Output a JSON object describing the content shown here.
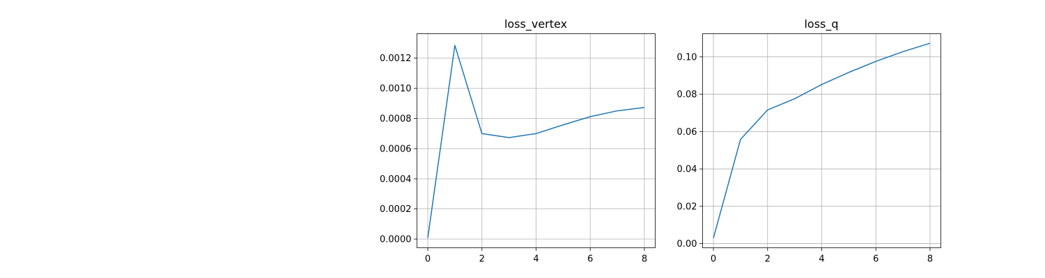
{
  "chart_data": [
    {
      "type": "line",
      "title": "loss_vertex",
      "xlabel": "",
      "ylabel": "",
      "x": [
        0,
        1,
        2,
        3,
        4,
        5,
        6,
        7,
        8
      ],
      "series": [
        {
          "values": [
            8e-06,
            0.001285,
            0.0007,
            0.000673,
            0.0007,
            0.000758,
            0.000812,
            0.000851,
            0.000873
          ]
        }
      ],
      "xlim": [
        -0.4,
        8.4
      ],
      "ylim": [
        -5.75e-05,
        0.0013625
      ],
      "xticks": [
        0,
        2,
        4,
        6,
        8
      ],
      "xtick_labels": [
        "0",
        "2",
        "4",
        "6",
        "8"
      ],
      "yticks": [
        0,
        0.0002,
        0.0004,
        0.0006,
        0.0008,
        0.001,
        0.0012
      ],
      "ytick_labels": [
        "0.0000",
        "0.0002",
        "0.0004",
        "0.0006",
        "0.0008",
        "0.0010",
        "0.0012"
      ],
      "grid": true,
      "color": "#1f77b4"
    },
    {
      "type": "line",
      "title": "loss_q",
      "xlabel": "",
      "ylabel": "",
      "x": [
        0,
        1,
        2,
        3,
        4,
        5,
        6,
        7,
        8
      ],
      "series": [
        {
          "values": [
            0.003,
            0.0558,
            0.0716,
            0.0776,
            0.0852,
            0.0917,
            0.0976,
            0.1028,
            0.1073
          ]
        }
      ],
      "xlim": [
        -0.4,
        8.4
      ],
      "ylim": [
        -0.0022,
        0.1124
      ],
      "xticks": [
        0,
        2,
        4,
        6,
        8
      ],
      "xtick_labels": [
        "0",
        "2",
        "4",
        "6",
        "8"
      ],
      "yticks": [
        0.0,
        0.02,
        0.04,
        0.06,
        0.08,
        0.1
      ],
      "ytick_labels": [
        "0.00",
        "0.02",
        "0.04",
        "0.06",
        "0.08",
        "0.10"
      ],
      "grid": true,
      "color": "#1f77b4"
    }
  ]
}
